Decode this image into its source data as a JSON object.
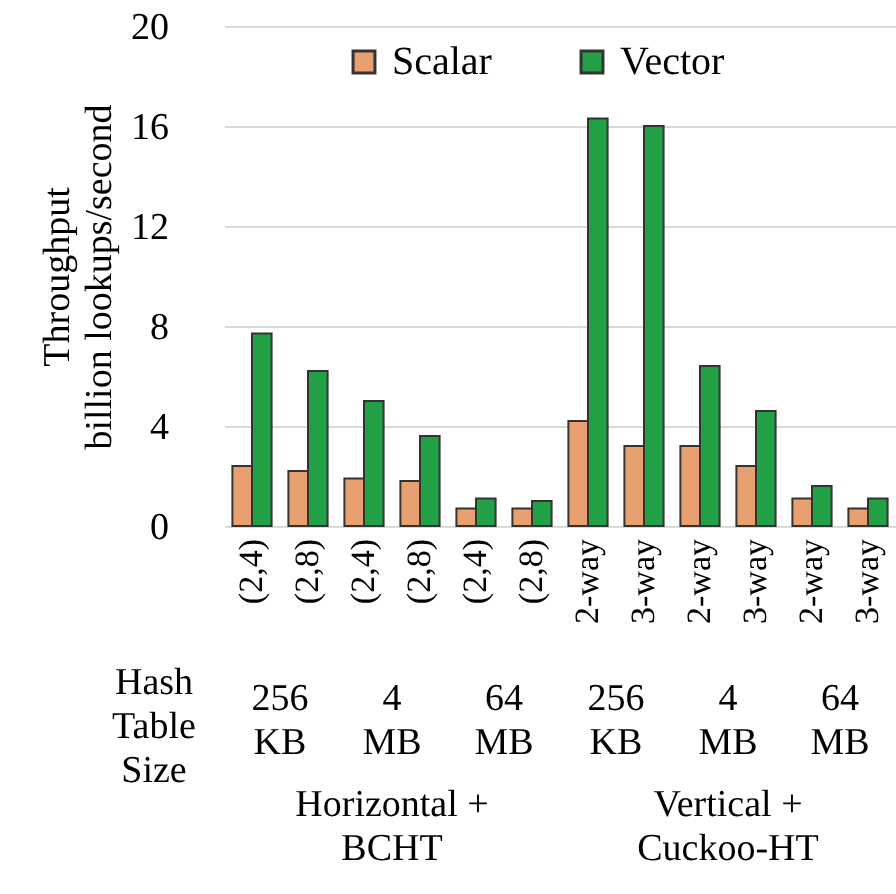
{
  "chart_data": {
    "type": "bar",
    "ylabel": "Throughput\nbillion lookups/second",
    "categories": [
      "(2,4)",
      "(2,8)",
      "(2,4)",
      "(2,8)",
      "(2,4)",
      "(2,8)",
      "2-way",
      "3-way",
      "2-way",
      "3-way",
      "2-way",
      "3-way"
    ],
    "series": [
      {
        "name": "Scalar",
        "color": "#e8a070",
        "values": [
          2.4,
          2.2,
          1.9,
          1.8,
          0.7,
          0.7,
          4.2,
          3.2,
          3.2,
          2.4,
          1.1,
          0.7
        ]
      },
      {
        "name": "Vector",
        "color": "#22a045",
        "values": [
          7.7,
          6.2,
          5.0,
          3.6,
          1.1,
          1.0,
          16.3,
          16.0,
          6.4,
          4.6,
          1.6,
          1.1
        ]
      }
    ],
    "ylim": [
      0,
      20
    ],
    "yticks": [
      0,
      4,
      8,
      12,
      16,
      20
    ],
    "grid": "y",
    "legend": "top",
    "annotations": [
      "Hash Table Size",
      "256 KB",
      "4 MB",
      "64 MB",
      "256 KB",
      "4 MB",
      "64 MB",
      "Horizontal + BCHT",
      "Vertical + Cuckoo-HT"
    ]
  }
}
